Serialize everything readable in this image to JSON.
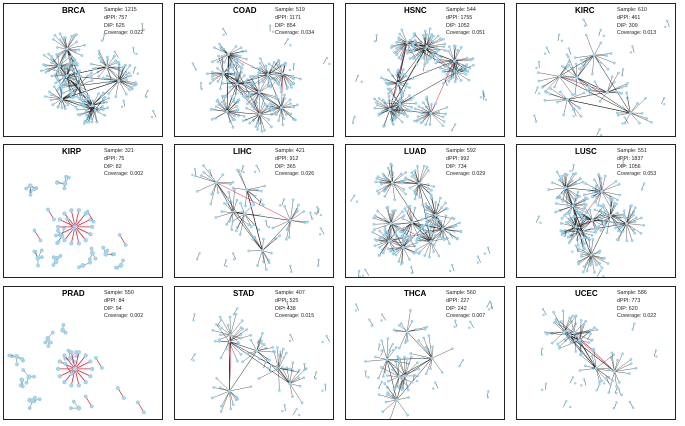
{
  "figure": {
    "stat_labels": {
      "sample": "Sample:",
      "dppi": "dPPI:",
      "dip": "DIP:",
      "coverage": "Coverage:"
    },
    "colors": {
      "node": "#a9d6ea",
      "node_stroke": "#6ab4d6",
      "edge": "#1a1a1a",
      "highlight": "#d7263d"
    },
    "panels": [
      {
        "name": "BRCA",
        "sample": "1215",
        "dppi": "757",
        "dip": "625",
        "coverage": "0.022",
        "style": "dense"
      },
      {
        "name": "COAD",
        "sample": "519",
        "dppi": "1171",
        "dip": "854",
        "coverage": "0.034",
        "style": "dense"
      },
      {
        "name": "HSNC",
        "sample": "544",
        "dppi": "1755",
        "dip": "1052",
        "coverage": "0.051",
        "style": "dense"
      },
      {
        "name": "KIRC",
        "sample": "610",
        "dppi": "461",
        "dip": "309",
        "coverage": "0.013",
        "style": "medium"
      },
      {
        "name": "KIRP",
        "sample": "321",
        "dppi": "75",
        "dip": "82",
        "coverage": "0.002",
        "style": "sparse"
      },
      {
        "name": "LIHC",
        "sample": "421",
        "dppi": "912",
        "dip": "365",
        "coverage": "0.026",
        "style": "medium"
      },
      {
        "name": "LUAD",
        "sample": "592",
        "dppi": "992",
        "dip": "734",
        "coverage": "0.029",
        "style": "dense"
      },
      {
        "name": "LUSC",
        "sample": "551",
        "dppi": "1837",
        "dip": "1056",
        "coverage": "0.053",
        "style": "dense"
      },
      {
        "name": "PRAD",
        "sample": "550",
        "dppi": "84",
        "dip": "94",
        "coverage": "0.002",
        "style": "sparse"
      },
      {
        "name": "STAD",
        "sample": "407",
        "dppi": "525",
        "dip": "438",
        "coverage": "0.015",
        "style": "medium"
      },
      {
        "name": "THCA",
        "sample": "560",
        "dppi": "227",
        "dip": "242",
        "coverage": "0.007",
        "style": "medium"
      },
      {
        "name": "UCEC",
        "sample": "586",
        "dppi": "773",
        "dip": "620",
        "coverage": "0.022",
        "style": "medium"
      }
    ]
  }
}
